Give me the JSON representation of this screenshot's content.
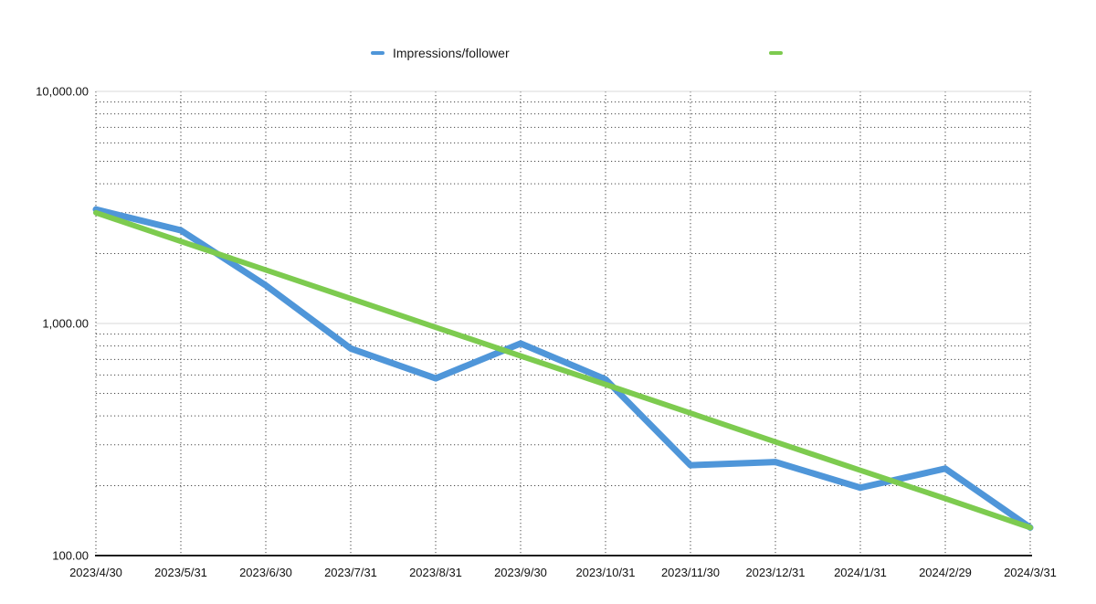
{
  "page": {
    "background": "#ffffff"
  },
  "legend": {
    "items": [
      {
        "label": "Impressions/follower",
        "color": "#4f96d9"
      },
      {
        "label": "",
        "color": "#7dcb4f"
      }
    ]
  },
  "chart_data": {
    "type": "line",
    "title": "",
    "xlabel": "",
    "ylabel": "",
    "y_scale": "log",
    "ylim": [
      100,
      10000
    ],
    "y_ticks": [
      {
        "value": 100,
        "label": "100.00"
      },
      {
        "value": 1000,
        "label": "1,000.00"
      },
      {
        "value": 10000,
        "label": "10,000.00"
      }
    ],
    "categories": [
      "2023/4/30",
      "2023/5/31",
      "2023/6/30",
      "2023/7/31",
      "2023/8/31",
      "2023/9/30",
      "2023/10/31",
      "2023/11/30",
      "2023/12/31",
      "2024/1/31",
      "2024/2/29",
      "2024/3/31"
    ],
    "series": [
      {
        "name": "Impressions/follower",
        "color": "#4f96d9",
        "width": 7,
        "values": [
          3100,
          2520,
          1460,
          780,
          580,
          820,
          575,
          245,
          253,
          196,
          237,
          132
        ]
      },
      {
        "name": "",
        "color": "#7dcb4f",
        "width": 6,
        "values": [
          3000,
          2258,
          1700,
          1280,
          963,
          725,
          546,
          411,
          309,
          233,
          176,
          132
        ]
      }
    ],
    "grid": {
      "major_color": "#d8d8d8",
      "minor_color": "#4a4a4a",
      "minor_style": "dotted",
      "axis_color": "#1f1f1f",
      "minor_multiples": [
        2,
        3,
        4,
        5,
        6,
        7,
        8,
        9
      ]
    }
  }
}
